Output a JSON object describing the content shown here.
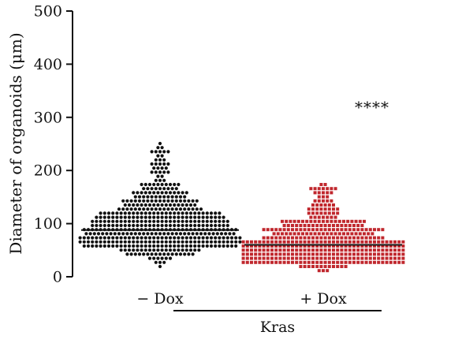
{
  "chart_data": {
    "type": "scatter",
    "subtype": "beeswarm",
    "title": "",
    "ylabel": "Diameter of organoids (μm)",
    "ylim": [
      0,
      500
    ],
    "yticks": [
      "0",
      "100",
      "200",
      "300",
      "400",
      "500"
    ],
    "categories": [
      "− Dox",
      "+ Dox"
    ],
    "group_label": "Kras",
    "annotation": "****",
    "grid": false,
    "series": [
      {
        "category": "− Dox",
        "color": "#111111",
        "marker": "circle",
        "n_points": 520,
        "median": 88,
        "min": 18,
        "max": 250
      },
      {
        "category": "+ Dox",
        "color": "#c0272d",
        "marker": "square",
        "n_points": 560,
        "median": 60,
        "min": 10,
        "max": 175
      }
    ]
  }
}
